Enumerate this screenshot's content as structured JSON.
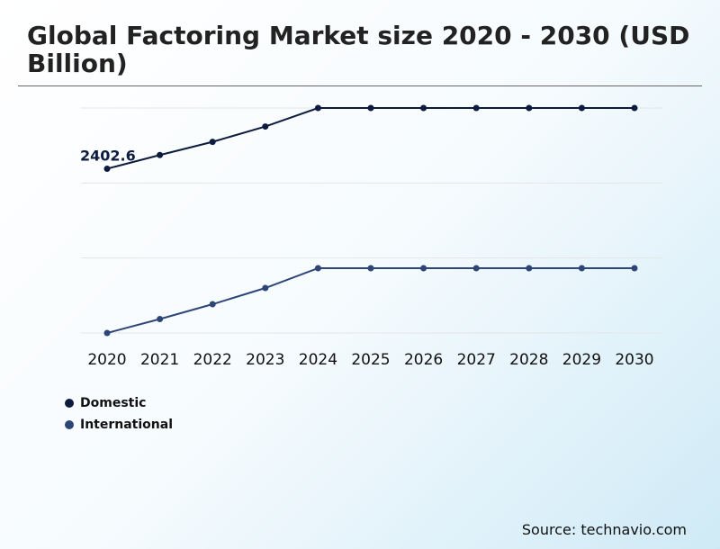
{
  "chart_data": {
    "type": "line",
    "title": "Global Factoring Market size 2020 - 2030 (USD Billion)",
    "xlabel": "",
    "ylabel": "",
    "categories": [
      "2020",
      "2021",
      "2022",
      "2023",
      "2024",
      "2025",
      "2026",
      "2027",
      "2028",
      "2029",
      "2030"
    ],
    "series": [
      {
        "name": "Domestic",
        "color": "#0d1b3e",
        "values": [
          2402.6,
          2603,
          2796,
          3020,
          3291,
          3291,
          3291,
          3291,
          3291,
          3291,
          3291
        ]
      },
      {
        "name": "International",
        "color": "#2e4677",
        "values": [
          0,
          204,
          421,
          658,
          948,
          948,
          948,
          948,
          948,
          948,
          948
        ]
      }
    ],
    "data_labels": [
      {
        "series": "Domestic",
        "category": "2020",
        "text": "2402.6"
      }
    ],
    "ylim": [
      0,
      3291
    ],
    "grid": true,
    "legend_position": "bottom-left"
  },
  "source": "Source: technavio.com"
}
